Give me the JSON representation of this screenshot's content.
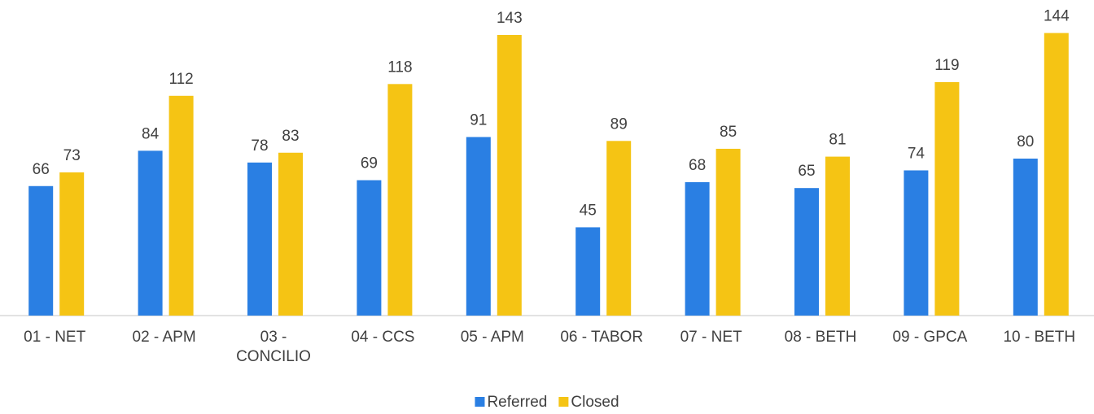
{
  "chart_data": {
    "type": "bar",
    "categories": [
      "01 - NET",
      "02 - APM",
      "03 - CONCILIO",
      "04 - CCS",
      "05 - APM",
      "06 - TABOR",
      "07 - NET",
      "08 - BETH",
      "09 - GPCA",
      "10 - BETH"
    ],
    "series": [
      {
        "name": "Referred",
        "color": "#2a7fe3",
        "values": [
          66,
          84,
          78,
          69,
          91,
          45,
          68,
          65,
          74,
          80
        ]
      },
      {
        "name": "Closed",
        "color": "#f5c414",
        "values": [
          73,
          112,
          83,
          118,
          143,
          89,
          85,
          81,
          119,
          144
        ]
      }
    ],
    "ylim": [
      0,
      160
    ],
    "legend": "bottom"
  }
}
